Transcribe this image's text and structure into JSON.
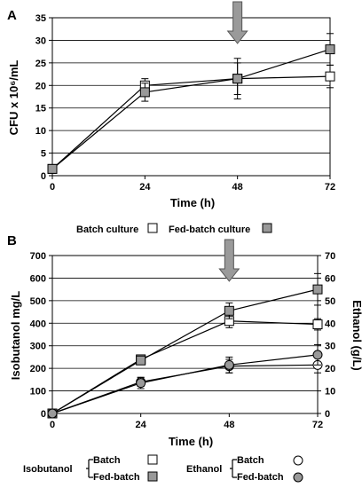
{
  "chart_data": [
    {
      "type": "line",
      "panel": "A",
      "xlabel": "Time (h)",
      "ylabel": "CFU x 10⁶/mL",
      "x": [
        0,
        24,
        48,
        72
      ],
      "xticks": [
        "0",
        "24",
        "48",
        "72"
      ],
      "ylim": [
        0,
        35
      ],
      "yticks": [
        "0",
        "5",
        "10",
        "15",
        "20",
        "25",
        "30",
        "35"
      ],
      "grid": true,
      "arrow_at_x": 48,
      "series": [
        {
          "name": "Batch culture",
          "marker": "square-open",
          "values": [
            1.5,
            20,
            21.5,
            22
          ],
          "errors": [
            0,
            1.5,
            3.5,
            2.5
          ]
        },
        {
          "name": "Fed-batch culture",
          "marker": "square-grey",
          "values": [
            1.5,
            18.5,
            21.5,
            28
          ],
          "errors": [
            0,
            2,
            4.5,
            3.5
          ]
        }
      ],
      "legend_position": "bottom"
    },
    {
      "type": "line",
      "panel": "B",
      "xlabel": "Time (h)",
      "ylabel": "Isobutanol mg/L",
      "y2label": "Ethanol (g/L)",
      "x": [
        0,
        24,
        48,
        72
      ],
      "xticks": [
        "0",
        "24",
        "48",
        "72"
      ],
      "ylim": [
        0,
        700
      ],
      "yticks": [
        "0",
        "100",
        "200",
        "300",
        "400",
        "500",
        "600",
        "700"
      ],
      "y2lim": [
        0,
        70
      ],
      "y2ticks": [
        "0",
        "10",
        "20",
        "30",
        "40",
        "50",
        "60",
        "70"
      ],
      "grid": true,
      "arrow_at_x": 48,
      "series": [
        {
          "group": "Isobutanol",
          "name": "Batch",
          "marker": "square-open",
          "axis": "left",
          "values": [
            0,
            240,
            410,
            395
          ],
          "errors": [
            0,
            15,
            30,
            25
          ]
        },
        {
          "group": "Isobutanol",
          "name": "Fed-batch",
          "marker": "square-grey",
          "axis": "left",
          "values": [
            0,
            235,
            455,
            550
          ],
          "errors": [
            0,
            15,
            35,
            70
          ]
        },
        {
          "group": "Ethanol",
          "name": "Batch",
          "marker": "circle-open",
          "axis": "right",
          "values": [
            0,
            14,
            21,
            21.5
          ],
          "errors": [
            0,
            2,
            3,
            3.5
          ]
        },
        {
          "group": "Ethanol",
          "name": "Fed-batch",
          "marker": "circle-grey",
          "axis": "right",
          "values": [
            0,
            13.5,
            21.5,
            26
          ],
          "errors": [
            0,
            2.5,
            3.5,
            4.5
          ]
        }
      ],
      "legend_position": "bottom"
    }
  ],
  "legend_a": {
    "batch": "Batch culture",
    "fedbatch": "Fed-batch culture"
  },
  "legend_b": {
    "isobutanol": "Isobutanol",
    "ethanol": "Ethanol",
    "batch": "Batch",
    "fedbatch": "Fed-batch"
  },
  "colors": {
    "grey_marker": "#999999",
    "arrow": "#9a9a9a",
    "line": "#000000"
  }
}
